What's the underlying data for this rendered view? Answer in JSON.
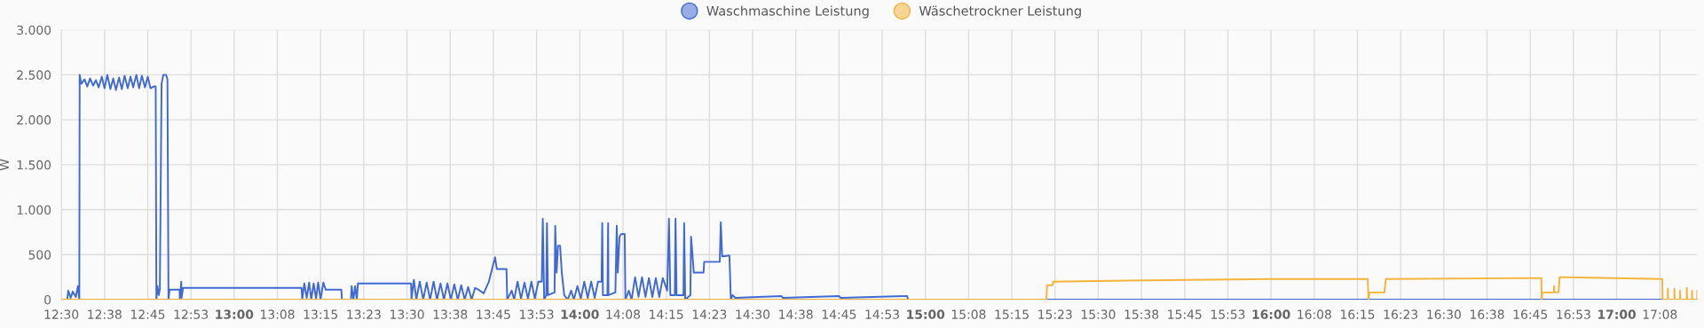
{
  "chart_data": {
    "type": "line",
    "ylabel": "W",
    "legend": "top",
    "grid": true,
    "marker": "none",
    "line_style": "solid",
    "xlim": [
      12.5,
      17.233
    ],
    "ylim": [
      0,
      3000
    ],
    "yticks": [
      0,
      {
        "value": 500,
        "label": "500"
      },
      {
        "value": 1000,
        "label": "1.000"
      },
      {
        "value": 1500,
        "label": "1.500"
      },
      {
        "value": 2000,
        "label": "2.000"
      },
      {
        "value": 2500,
        "label": "2.500"
      },
      {
        "value": 3000,
        "label": "3.000"
      }
    ],
    "xticks": [
      {
        "value": 12.5,
        "label": "12:30"
      },
      {
        "value": 12.625,
        "label": "12:38"
      },
      {
        "value": 12.75,
        "label": "12:45"
      },
      {
        "value": 12.875,
        "label": "12:53"
      },
      {
        "value": 13.0,
        "label": "13:00"
      },
      {
        "value": 13.125,
        "label": "13:08"
      },
      {
        "value": 13.25,
        "label": "13:15"
      },
      {
        "value": 13.375,
        "label": "13:23"
      },
      {
        "value": 13.5,
        "label": "13:30"
      },
      {
        "value": 13.625,
        "label": "13:38"
      },
      {
        "value": 13.75,
        "label": "13:45"
      },
      {
        "value": 13.875,
        "label": "13:53"
      },
      {
        "value": 14.0,
        "label": "14:00"
      },
      {
        "value": 14.125,
        "label": "14:08"
      },
      {
        "value": 14.25,
        "label": "14:15"
      },
      {
        "value": 14.375,
        "label": "14:23"
      },
      {
        "value": 14.5,
        "label": "14:30"
      },
      {
        "value": 14.625,
        "label": "14:38"
      },
      {
        "value": 14.75,
        "label": "14:45"
      },
      {
        "value": 14.875,
        "label": "14:53"
      },
      {
        "value": 15.0,
        "label": "15:00"
      },
      {
        "value": 15.125,
        "label": "15:08"
      },
      {
        "value": 15.25,
        "label": "15:15"
      },
      {
        "value": 15.375,
        "label": "15:23"
      },
      {
        "value": 15.5,
        "label": "15:30"
      },
      {
        "value": 15.625,
        "label": "15:38"
      },
      {
        "value": 15.75,
        "label": "15:45"
      },
      {
        "value": 15.875,
        "label": "15:53"
      },
      {
        "value": 16.0,
        "label": "16:00"
      },
      {
        "value": 16.125,
        "label": "16:08"
      },
      {
        "value": 16.25,
        "label": "16:15"
      },
      {
        "value": 16.375,
        "label": "16:23"
      },
      {
        "value": 16.5,
        "label": "16:30"
      },
      {
        "value": 16.625,
        "label": "16:38"
      },
      {
        "value": 16.75,
        "label": "16:45"
      },
      {
        "value": 16.875,
        "label": "16:53"
      },
      {
        "value": 17.0,
        "label": "17:00"
      },
      {
        "value": 17.125,
        "label": "17:08"
      }
    ],
    "series": [
      {
        "name": "Waschmaschine Leistung",
        "color": "#4169d4",
        "x": [
          12.5,
          12.517,
          12.52,
          12.527,
          12.533,
          12.542,
          12.548,
          12.552,
          12.553,
          12.558,
          12.567,
          12.575,
          12.583,
          12.592,
          12.6,
          12.608,
          12.617,
          12.625,
          12.633,
          12.642,
          12.65,
          12.658,
          12.667,
          12.675,
          12.683,
          12.692,
          12.7,
          12.708,
          12.717,
          12.725,
          12.733,
          12.742,
          12.75,
          12.758,
          12.767,
          12.773,
          12.775,
          12.778,
          12.782,
          12.785,
          12.79,
          12.795,
          12.803,
          12.807,
          12.81,
          12.813,
          12.842,
          12.843,
          12.847,
          12.848,
          12.852,
          13.195,
          13.197,
          13.203,
          13.21,
          13.217,
          13.223,
          13.23,
          13.237,
          13.243,
          13.25,
          13.258,
          13.265,
          13.31,
          13.312,
          13.338,
          13.34,
          13.345,
          13.35,
          13.355,
          13.358,
          13.512,
          13.513,
          13.52,
          13.527,
          13.537,
          13.547,
          13.557,
          13.567,
          13.577,
          13.587,
          13.597,
          13.607,
          13.617,
          13.627,
          13.637,
          13.647,
          13.657,
          13.667,
          13.677,
          13.687,
          13.697,
          13.703,
          13.722,
          13.737,
          13.75,
          13.755,
          13.76,
          13.788,
          13.79,
          13.803,
          13.81,
          13.82,
          13.83,
          13.84,
          13.85,
          13.86,
          13.87,
          13.88,
          13.89,
          13.893,
          13.897,
          13.903,
          13.905,
          13.908,
          13.927,
          13.929,
          13.933,
          13.937,
          13.943,
          13.948,
          13.955,
          13.965,
          13.975,
          13.983,
          13.993,
          14.003,
          14.013,
          14.023,
          14.033,
          14.043,
          14.053,
          14.063,
          14.065,
          14.067,
          14.08,
          14.082,
          14.083,
          14.103,
          14.107,
          14.11,
          14.115,
          14.12,
          14.13,
          14.132,
          14.142,
          14.15,
          14.16,
          14.17,
          14.18,
          14.19,
          14.2,
          14.21,
          14.22,
          14.23,
          14.24,
          14.253,
          14.258,
          14.262,
          14.275,
          14.277,
          14.28,
          14.3,
          14.302,
          14.305,
          14.32,
          14.322,
          14.33,
          14.358,
          14.36,
          14.405,
          14.408,
          14.412,
          14.433,
          14.437,
          14.442,
          14.45,
          14.583,
          14.588,
          14.75,
          14.755,
          14.947,
          14.95,
          17.233
        ],
        "values": [
          0,
          0,
          100,
          20,
          90,
          30,
          150,
          0,
          2500,
          2400,
          2450,
          2370,
          2460,
          2380,
          2440,
          2360,
          2480,
          2350,
          2500,
          2340,
          2460,
          2330,
          2470,
          2340,
          2490,
          2350,
          2480,
          2360,
          2500,
          2350,
          2490,
          2360,
          2480,
          2350,
          2370,
          2370,
          0,
          150,
          50,
          120,
          2400,
          2500,
          2500,
          2450,
          0,
          110,
          110,
          0,
          200,
          20,
          130,
          130,
          0,
          180,
          20,
          190,
          0,
          180,
          10,
          190,
          0,
          190,
          110,
          110,
          0,
          0,
          150,
          0,
          150,
          0,
          180,
          180,
          0,
          220,
          0,
          200,
          0,
          190,
          0,
          200,
          0,
          180,
          0,
          180,
          0,
          170,
          0,
          160,
          0,
          140,
          0,
          130,
          120,
          70,
          200,
          400,
          470,
          340,
          340,
          0,
          100,
          0,
          200,
          10,
          190,
          10,
          200,
          10,
          200,
          200,
          900,
          0,
          50,
          850,
          50,
          80,
          820,
          300,
          600,
          600,
          300,
          50,
          0,
          100,
          0,
          150,
          10,
          200,
          20,
          200,
          20,
          200,
          200,
          850,
          50,
          50,
          850,
          50,
          80,
          820,
          300,
          700,
          730,
          730,
          0,
          100,
          0,
          250,
          30,
          250,
          30,
          240,
          30,
          240,
          30,
          240,
          100,
          900,
          50,
          50,
          900,
          50,
          50,
          850,
          0,
          50,
          700,
          300,
          300,
          420,
          420,
          860,
          480,
          490,
          0,
          50,
          20,
          40,
          20,
          40,
          20,
          40,
          0,
          0
        ]
      },
      {
        "name": "Wäschetrockner Leistung",
        "color": "#f2b43c",
        "x": [
          12.5,
          15.35,
          15.352,
          15.368,
          15.37,
          15.542,
          16.0,
          16.28,
          16.282,
          16.285,
          16.328,
          16.332,
          16.782,
          16.783,
          16.785,
          16.818,
          16.819,
          16.82,
          16.832,
          16.835,
          17.132,
          17.133,
          17.148,
          17.148,
          17.149,
          17.167,
          17.167,
          17.168,
          17.183,
          17.183,
          17.184,
          17.203,
          17.203,
          17.204,
          17.218,
          17.218,
          17.219,
          17.233,
          17.233
        ],
        "values": [
          0,
          0,
          160,
          160,
          200,
          210,
          230,
          230,
          0,
          80,
          80,
          230,
          240,
          0,
          80,
          80,
          150,
          80,
          80,
          250,
          230,
          0,
          0,
          120,
          0,
          0,
          120,
          0,
          0,
          100,
          0,
          0,
          130,
          0,
          0,
          100,
          0,
          0,
          100
        ]
      }
    ]
  }
}
